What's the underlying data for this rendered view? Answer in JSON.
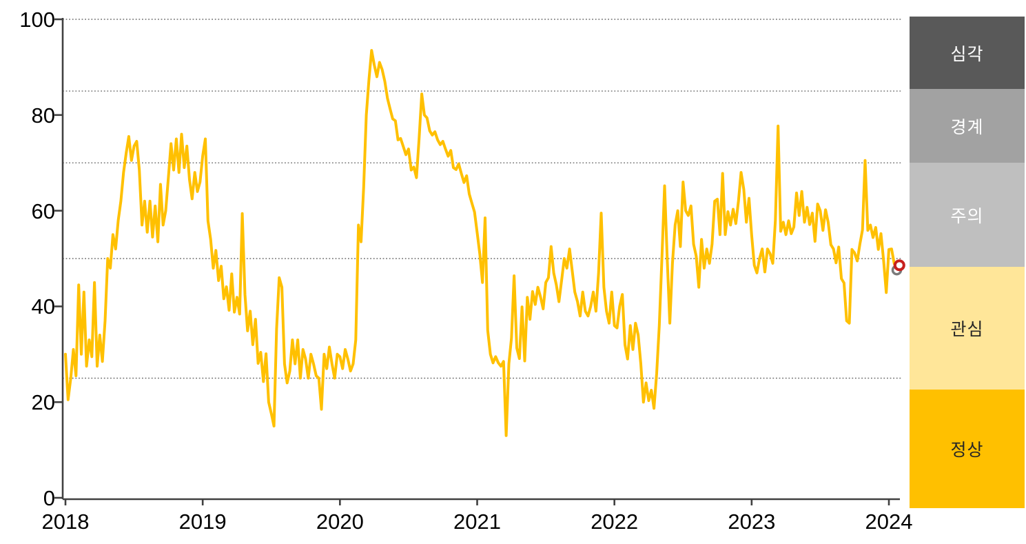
{
  "chart_data": {
    "type": "line",
    "title": "",
    "x_axis": {
      "tick_labels": [
        "2018",
        "2019",
        "2020",
        "2021",
        "2022",
        "2023",
        "2024"
      ]
    },
    "y_axis": {
      "range": [
        0,
        100
      ],
      "tick_labels": [
        "0",
        "20",
        "40",
        "60",
        "80",
        "100"
      ],
      "tick_values": [
        0,
        20,
        40,
        60,
        80,
        100
      ],
      "gridline_values": [
        25,
        50,
        70,
        85,
        100
      ],
      "gridline_style": "dotted",
      "gridline_color": "#6b6b6b"
    },
    "series": {
      "name": "stress-index",
      "color": "#FFC000",
      "start_label": "2018",
      "step": "weekly",
      "values": [
        30,
        20.5,
        25,
        31,
        25.5,
        44.5,
        30,
        43,
        27.5,
        33,
        29.5,
        45,
        27.5,
        34,
        28.5,
        37,
        50,
        48,
        55,
        52,
        58,
        62,
        68,
        72,
        75.5,
        70.5,
        73.5,
        74.5,
        68.5,
        57,
        62,
        55.5,
        62,
        54.5,
        61,
        53.5,
        65.5,
        57,
        60,
        67,
        74,
        68.5,
        75,
        68,
        76,
        69,
        73.5,
        66.5,
        62.5,
        68,
        64,
        66,
        71.5,
        75,
        57.9,
        54,
        48,
        51.7,
        45.4,
        48.4,
        41.6,
        44.1,
        39.2,
        46.8,
        38.8,
        41.9,
        38.4,
        59.4,
        42.5,
        34.9,
        39,
        32,
        37.3,
        28.1,
        30.4,
        24.3,
        30.1,
        20,
        17.6,
        15,
        35.3,
        46,
        44,
        28,
        24,
        26.5,
        33,
        28,
        33,
        25,
        31,
        29,
        25,
        30,
        28,
        25.5,
        25,
        18.5,
        30,
        27,
        31.5,
        28,
        25,
        30,
        29.5,
        27,
        31,
        29,
        26.5,
        28,
        33,
        57,
        53.5,
        65,
        80,
        87.5,
        93.5,
        90.5,
        88,
        91,
        89.5,
        87,
        83.5,
        81.3,
        79.2,
        78.8,
        74.8,
        75.1,
        73.4,
        71.7,
        72.9,
        68.5,
        69.1,
        66.9,
        75,
        84.4,
        80,
        79.4,
        76.7,
        75.8,
        76.5,
        74.8,
        73.8,
        74.5,
        72.9,
        71.4,
        72.6,
        69,
        68.6,
        69.8,
        67.8,
        65.9,
        67.3,
        63.5,
        61.6,
        59.7,
        55.4,
        51,
        45,
        58.5,
        35,
        30,
        28.2,
        29.5,
        28.2,
        27.5,
        28.5,
        13,
        28,
        33.4,
        46.4,
        31.3,
        29.1,
        39.9,
        28.6,
        41.9,
        37.3,
        43.1,
        40.4,
        44,
        42,
        39.5,
        45,
        46,
        52.5,
        47,
        44.5,
        41,
        45.5,
        50,
        48,
        52,
        47.5,
        43,
        41,
        38,
        43,
        39,
        38,
        40,
        43,
        39,
        47,
        59.5,
        44,
        39,
        36.5,
        43,
        36,
        35.5,
        40,
        42.5,
        32,
        29,
        36,
        31,
        36.5,
        34,
        28,
        20,
        24,
        20.3,
        22.5,
        18.7,
        26,
        36,
        50,
        65.2,
        50,
        36.5,
        49,
        57,
        60,
        52.5,
        66,
        60,
        59,
        61,
        53,
        50.5,
        44,
        54,
        48,
        52,
        49,
        53,
        62,
        62.4,
        55,
        67.8,
        55,
        59.8,
        57,
        60.3,
        57.3,
        62,
        68,
        64.5,
        57.6,
        62.6,
        55,
        48.6,
        47,
        50,
        52,
        47.2,
        52,
        51,
        49,
        58,
        77.7,
        55.7,
        57.6,
        55,
        57.9,
        55.2,
        56.6,
        63.7,
        59,
        64,
        57.6,
        60.7,
        57.1,
        59.5,
        53.6,
        61.4,
        60,
        55.9,
        60.2,
        57.6,
        52.9,
        52,
        49.1,
        52.4,
        45.8,
        44.9,
        37,
        36.5,
        51.9,
        51.2,
        49.5,
        53,
        56,
        70.5,
        55.9,
        57,
        54.4,
        56.5,
        51.9,
        55.2,
        49.5,
        42.9,
        51.9,
        52,
        49,
        47.6,
        48.6
      ]
    },
    "end_markers": [
      {
        "name": "previous-point-marker",
        "shape": "open-circle",
        "color": "#7A7A7A",
        "week_index": 315,
        "value": 47.6
      },
      {
        "name": "latest-point-marker",
        "shape": "open-circle",
        "color": "#C7201E",
        "week_index": 316,
        "value": 48.6
      }
    ],
    "zones": [
      {
        "label": "심각",
        "color": "#595959",
        "text_color": "#FFFFFF",
        "range": [
          85,
          100
        ]
      },
      {
        "label": "경계",
        "color": "#A2A2A2",
        "text_color": "#FFFFFF",
        "range": [
          70,
          85
        ]
      },
      {
        "label": "주의",
        "color": "#BFBFBF",
        "text_color": "#FFFFFF",
        "range": [
          50,
          70
        ]
      },
      {
        "label": "관심",
        "color": "#FFE699",
        "text_color": "#262626",
        "range": [
          25,
          50
        ]
      },
      {
        "label": "정상",
        "color": "#FFC000",
        "text_color": "#262626",
        "range": [
          0,
          25
        ]
      }
    ],
    "legend_position": "right",
    "axis_color": "#404040"
  }
}
